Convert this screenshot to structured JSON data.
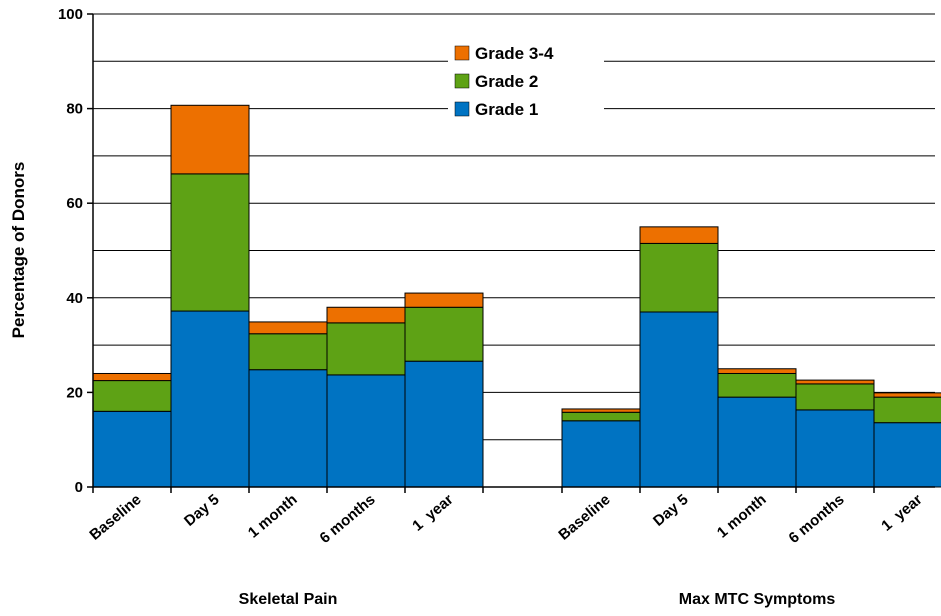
{
  "chart_data": {
    "type": "bar",
    "stacked": true,
    "ylabel": "Percentage of Donors",
    "ylim": [
      0,
      100
    ],
    "yticks": [
      0,
      20,
      40,
      60,
      80,
      100
    ],
    "grid": "horizontal every 10",
    "legend_position": "top-center",
    "legend": [
      {
        "name": "Grade 3-4",
        "color": "#ed7000"
      },
      {
        "name": "Grade 2",
        "color": "#5ea215"
      },
      {
        "name": "Grade 1",
        "color": "#0073c2"
      }
    ],
    "groups": [
      {
        "label": "Skeletal Pain",
        "categories": [
          "Baseline",
          "Day 5",
          "1 month",
          "6 months",
          "1  year"
        ],
        "series": [
          {
            "name": "Grade 1",
            "values": [
              16,
              37.2,
              24.8,
              23.7,
              26.6
            ]
          },
          {
            "name": "Grade 2",
            "values": [
              6.5,
              29,
              7.6,
              11,
              11.4
            ]
          },
          {
            "name": "Grade 3-4",
            "values": [
              1.5,
              14.5,
              2.5,
              3.3,
              3
            ]
          }
        ]
      },
      {
        "label": "Max MTC Symptoms",
        "categories": [
          "Baseline",
          "Day 5",
          "1 month",
          "6 months",
          "1  year"
        ],
        "series": [
          {
            "name": "Grade 1",
            "values": [
              14,
              37,
              19,
              16.3,
              13.6
            ]
          },
          {
            "name": "Grade 2",
            "values": [
              1.8,
              14.5,
              5,
              5.5,
              5.4
            ]
          },
          {
            "name": "Grade 3-4",
            "values": [
              0.7,
              3.5,
              1,
              0.8,
              0.9
            ]
          }
        ]
      }
    ]
  }
}
